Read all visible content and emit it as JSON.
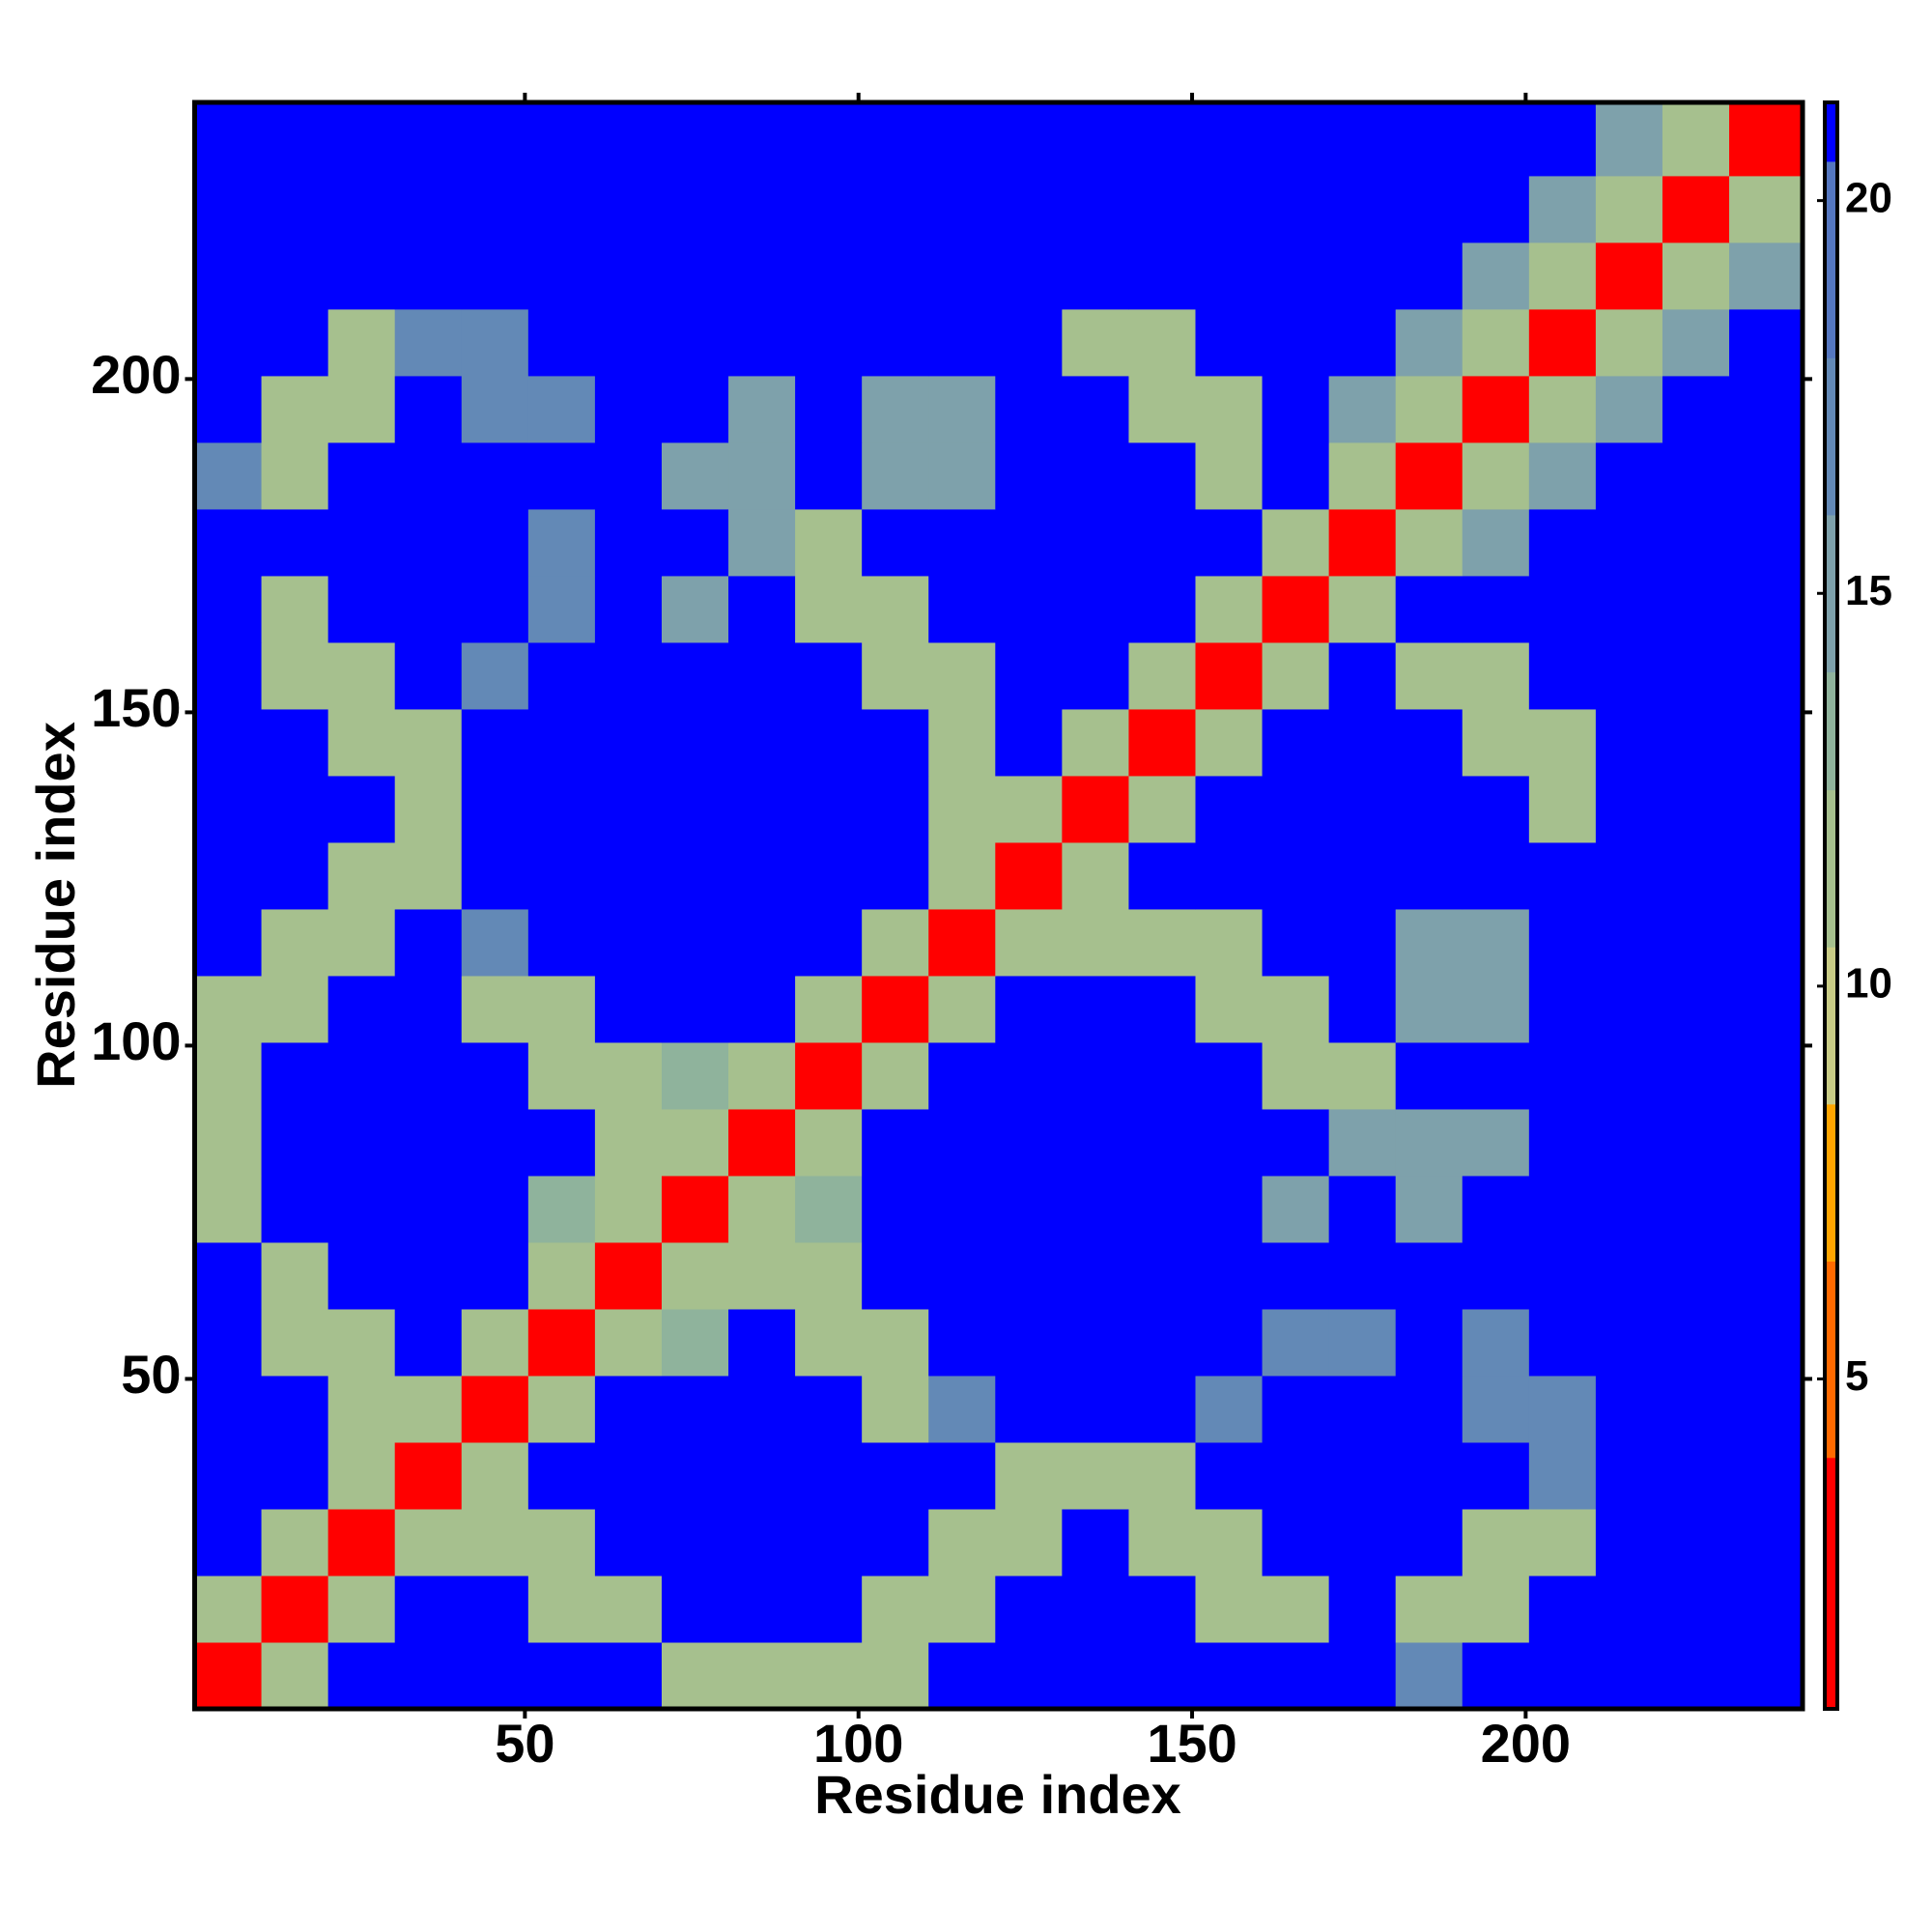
{
  "chart_data": {
    "type": "heatmap",
    "xlabel": "Residue index",
    "ylabel": "Residue index",
    "xlim": [
      0.5,
      241.5
    ],
    "ylim": [
      0.5,
      241.5
    ],
    "xticks": [
      50,
      100,
      150,
      200
    ],
    "yticks": [
      50,
      100,
      150,
      200
    ],
    "xbins": [
      0.5,
      10.5,
      20.5,
      30.5,
      40.5,
      50.5,
      60.5,
      70.5,
      80.5,
      90.5,
      100.5,
      110.5,
      120.5,
      130.5,
      140.5,
      150.5,
      160.5,
      170.5,
      180.5,
      190.5,
      200.5,
      210.5,
      220.5,
      230.5,
      241.5
    ],
    "ybins": [
      0.5,
      10.5,
      20.5,
      30.5,
      40.5,
      50.5,
      60.5,
      70.5,
      80.5,
      90.5,
      100.5,
      110.5,
      120.5,
      130.5,
      140.5,
      150.5,
      160.5,
      170.5,
      180.5,
      190.5,
      200.5,
      210.5,
      220.5,
      230.5,
      241.5
    ],
    "z": [
      [
        3,
        11,
        21,
        21,
        21,
        21,
        21,
        12,
        12,
        12,
        12,
        21,
        21,
        21,
        21,
        21,
        21,
        21,
        17,
        21,
        21,
        21,
        21,
        21
      ],
      [
        11,
        3,
        11,
        21,
        21,
        12,
        12,
        21,
        21,
        21,
        12,
        12,
        21,
        21,
        21,
        12,
        12,
        21,
        12,
        12,
        21,
        21,
        21,
        21
      ],
      [
        21,
        11,
        3,
        11,
        12,
        12,
        21,
        21,
        21,
        21,
        21,
        12,
        12,
        21,
        12,
        12,
        21,
        21,
        21,
        12,
        12,
        21,
        21,
        21
      ],
      [
        21,
        21,
        11,
        3,
        11,
        21,
        21,
        21,
        21,
        21,
        21,
        21,
        12,
        12,
        12,
        21,
        21,
        21,
        21,
        21,
        17,
        21,
        21,
        21
      ],
      [
        21,
        21,
        12,
        11,
        3,
        11,
        21,
        21,
        21,
        21,
        12,
        17,
        21,
        21,
        21,
        17,
        21,
        21,
        21,
        17,
        17,
        21,
        21,
        21
      ],
      [
        21,
        12,
        12,
        21,
        11,
        3,
        11,
        13,
        21,
        12,
        12,
        21,
        21,
        21,
        21,
        21,
        17,
        17,
        21,
        17,
        21,
        21,
        21,
        21
      ],
      [
        21,
        12,
        21,
        21,
        21,
        11,
        3,
        11,
        12,
        12,
        21,
        21,
        21,
        21,
        21,
        21,
        21,
        21,
        21,
        21,
        21,
        21,
        21,
        21
      ],
      [
        12,
        21,
        21,
        21,
        21,
        13,
        11,
        3,
        11,
        14,
        21,
        21,
        21,
        21,
        21,
        21,
        15,
        21,
        15,
        21,
        21,
        21,
        21,
        21
      ],
      [
        12,
        21,
        21,
        21,
        21,
        21,
        12,
        11,
        3,
        11,
        21,
        21,
        21,
        21,
        21,
        21,
        21,
        15,
        15,
        15,
        21,
        21,
        21,
        21
      ],
      [
        12,
        21,
        21,
        21,
        21,
        12,
        12,
        14,
        11,
        3,
        11,
        21,
        21,
        21,
        21,
        21,
        12,
        12,
        21,
        21,
        21,
        21,
        21,
        21
      ],
      [
        12,
        12,
        21,
        21,
        12,
        12,
        21,
        21,
        21,
        11,
        3,
        11,
        21,
        21,
        21,
        12,
        12,
        21,
        16,
        16,
        21,
        21,
        21,
        21
      ],
      [
        21,
        12,
        12,
        21,
        17,
        21,
        21,
        21,
        21,
        21,
        11,
        3,
        11,
        12,
        12,
        12,
        21,
        21,
        16,
        16,
        21,
        21,
        21,
        21
      ],
      [
        21,
        21,
        12,
        12,
        21,
        21,
        21,
        21,
        21,
        21,
        21,
        11,
        3,
        11,
        21,
        21,
        21,
        21,
        21,
        21,
        21,
        21,
        21,
        21
      ],
      [
        21,
        21,
        21,
        12,
        21,
        21,
        21,
        21,
        21,
        21,
        21,
        12,
        11,
        3,
        11,
        21,
        21,
        21,
        21,
        21,
        12,
        21,
        21,
        21
      ],
      [
        21,
        21,
        12,
        12,
        21,
        21,
        21,
        21,
        21,
        21,
        21,
        12,
        21,
        11,
        3,
        11,
        21,
        21,
        21,
        12,
        12,
        21,
        21,
        21
      ],
      [
        21,
        12,
        12,
        21,
        17,
        21,
        21,
        21,
        21,
        21,
        12,
        12,
        21,
        21,
        11,
        3,
        11,
        21,
        12,
        12,
        21,
        21,
        21,
        21
      ],
      [
        21,
        12,
        21,
        21,
        21,
        17,
        21,
        15,
        21,
        12,
        12,
        21,
        21,
        21,
        21,
        11,
        3,
        11,
        21,
        21,
        21,
        21,
        21,
        21
      ],
      [
        21,
        21,
        21,
        21,
        21,
        17,
        21,
        21,
        15,
        12,
        21,
        21,
        21,
        21,
        21,
        21,
        11,
        3,
        11,
        16,
        21,
        21,
        21,
        21
      ],
      [
        17,
        12,
        21,
        21,
        21,
        21,
        21,
        15,
        15,
        21,
        16,
        16,
        21,
        21,
        21,
        12,
        21,
        11,
        3,
        11,
        16,
        21,
        21,
        21
      ],
      [
        21,
        12,
        12,
        21,
        17,
        17,
        21,
        21,
        15,
        21,
        16,
        16,
        21,
        21,
        12,
        12,
        21,
        16,
        11,
        3,
        11,
        16,
        21,
        21
      ],
      [
        21,
        21,
        12,
        17,
        17,
        21,
        21,
        21,
        21,
        21,
        21,
        21,
        21,
        12,
        12,
        21,
        21,
        21,
        16,
        11,
        3,
        11,
        16,
        21
      ],
      [
        21,
        21,
        21,
        21,
        21,
        21,
        21,
        21,
        21,
        21,
        21,
        21,
        21,
        21,
        21,
        21,
        21,
        21,
        21,
        16,
        11,
        3,
        11,
        16
      ],
      [
        21,
        21,
        21,
        21,
        21,
        21,
        21,
        21,
        21,
        21,
        21,
        21,
        21,
        21,
        21,
        21,
        21,
        21,
        21,
        21,
        16,
        11,
        3,
        11
      ],
      [
        21,
        21,
        21,
        21,
        21,
        21,
        21,
        21,
        21,
        21,
        21,
        21,
        21,
        21,
        21,
        21,
        21,
        21,
        21,
        21,
        21,
        16,
        11,
        3
      ]
    ],
    "colorbar": {
      "lim": [
        0.8,
        21.25
      ],
      "ticks": [
        5,
        10,
        15,
        20
      ],
      "bands": [
        {
          "max": 4,
          "color": "#ff0000"
        },
        {
          "max": 6.5,
          "color": "#ff6a00"
        },
        {
          "max": 8.5,
          "color": "#ffa500"
        },
        {
          "max": 10.5,
          "color": "#c9cc86"
        },
        {
          "max": 12.5,
          "color": "#a6c08e"
        },
        {
          "max": 14,
          "color": "#8fb39c"
        },
        {
          "max": 16,
          "color": "#7ea1ab"
        },
        {
          "max": 18,
          "color": "#6389b6"
        },
        {
          "max": 20.5,
          "color": "#5577c0"
        },
        {
          "max": 21.25,
          "color": "#0000ff"
        }
      ]
    }
  }
}
